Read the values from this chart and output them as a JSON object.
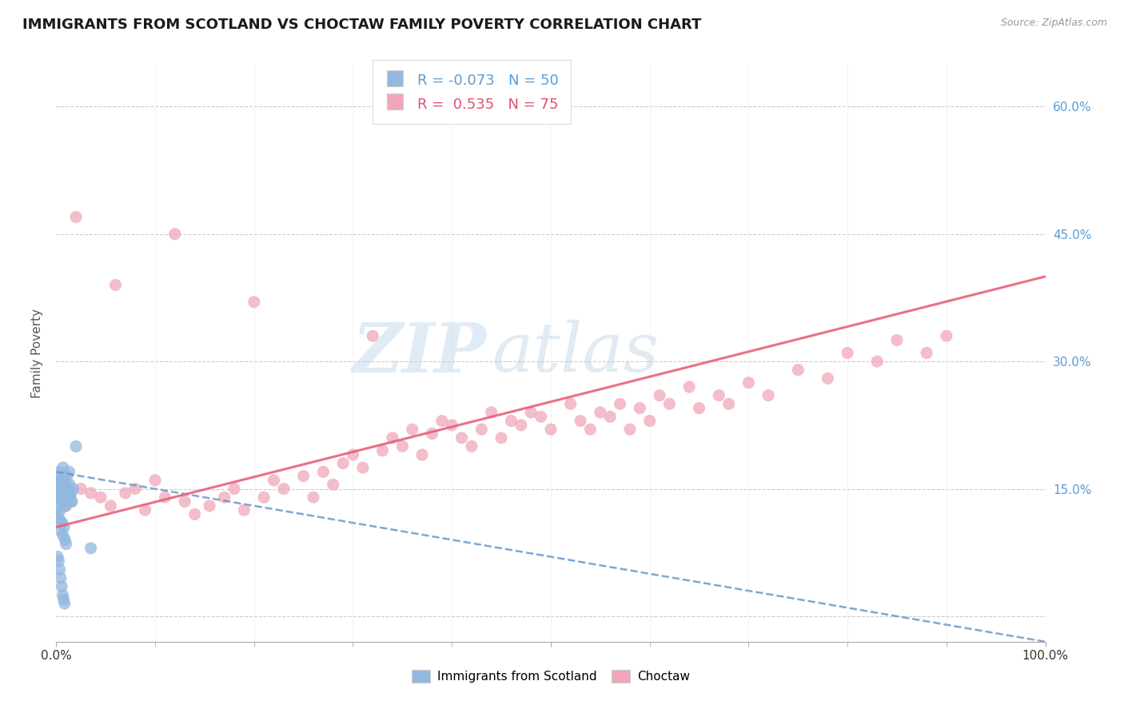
{
  "title": "IMMIGRANTS FROM SCOTLAND VS CHOCTAW FAMILY POVERTY CORRELATION CHART",
  "source_text": "Source: ZipAtlas.com",
  "ylabel": "Family Poverty",
  "xlim": [
    0,
    100
  ],
  "ylim": [
    -3,
    65
  ],
  "y_ticks_right": [
    0,
    15,
    30,
    45,
    60
  ],
  "y_tick_labels_right": [
    "",
    "15.0%",
    "30.0%",
    "45.0%",
    "60.0%"
  ],
  "background_color": "#ffffff",
  "grid_color": "#cccccc",
  "watermark_text1": "ZIP",
  "watermark_text2": "atlas",
  "blue_color": "#92b8e0",
  "blue_line_color": "#6699cc",
  "pink_color": "#f0a8b8",
  "pink_line_color": "#e8607a",
  "blue_scatter_x": [
    0.1,
    0.15,
    0.2,
    0.25,
    0.3,
    0.35,
    0.4,
    0.45,
    0.5,
    0.55,
    0.6,
    0.65,
    0.7,
    0.75,
    0.8,
    0.85,
    0.9,
    0.95,
    1.0,
    1.05,
    1.1,
    1.15,
    1.2,
    1.25,
    1.3,
    1.35,
    1.4,
    1.5,
    1.6,
    1.7,
    0.1,
    0.2,
    0.3,
    0.4,
    0.5,
    0.6,
    0.7,
    0.8,
    0.9,
    1.0,
    0.15,
    0.25,
    0.35,
    0.45,
    0.55,
    0.65,
    0.75,
    0.85,
    3.5,
    2.0
  ],
  "blue_scatter_y": [
    14.0,
    15.5,
    16.0,
    14.5,
    17.0,
    15.0,
    16.5,
    14.0,
    15.0,
    13.5,
    16.0,
    15.5,
    17.5,
    14.0,
    16.0,
    15.0,
    14.5,
    13.0,
    15.5,
    14.0,
    16.5,
    15.0,
    14.0,
    13.5,
    17.0,
    15.5,
    14.0,
    14.5,
    13.5,
    15.0,
    12.0,
    13.0,
    11.5,
    12.5,
    10.0,
    11.0,
    9.5,
    10.5,
    9.0,
    8.5,
    7.0,
    6.5,
    5.5,
    4.5,
    3.5,
    2.5,
    2.0,
    1.5,
    8.0,
    20.0
  ],
  "pink_scatter_x": [
    0.5,
    1.0,
    1.5,
    2.5,
    3.5,
    4.5,
    5.5,
    7.0,
    8.0,
    9.0,
    10.0,
    11.0,
    13.0,
    14.0,
    15.5,
    17.0,
    18.0,
    19.0,
    21.0,
    22.0,
    23.0,
    25.0,
    26.0,
    27.0,
    28.0,
    29.0,
    30.0,
    31.0,
    33.0,
    34.0,
    35.0,
    36.0,
    37.0,
    38.0,
    39.0,
    40.0,
    41.0,
    42.0,
    43.0,
    44.0,
    45.0,
    46.0,
    47.0,
    48.0,
    49.0,
    50.0,
    52.0,
    53.0,
    54.0,
    55.0,
    56.0,
    57.0,
    58.0,
    59.0,
    60.0,
    61.0,
    62.0,
    64.0,
    65.0,
    67.0,
    68.0,
    70.0,
    72.0,
    75.0,
    78.0,
    80.0,
    83.0,
    85.0,
    88.0,
    90.0,
    2.0,
    6.0,
    12.0,
    20.0,
    32.0
  ],
  "pink_scatter_y": [
    11.0,
    13.0,
    13.5,
    15.0,
    14.5,
    14.0,
    13.0,
    14.5,
    15.0,
    12.5,
    16.0,
    14.0,
    13.5,
    12.0,
    13.0,
    14.0,
    15.0,
    12.5,
    14.0,
    16.0,
    15.0,
    16.5,
    14.0,
    17.0,
    15.5,
    18.0,
    19.0,
    17.5,
    19.5,
    21.0,
    20.0,
    22.0,
    19.0,
    21.5,
    23.0,
    22.5,
    21.0,
    20.0,
    22.0,
    24.0,
    21.0,
    23.0,
    22.5,
    24.0,
    23.5,
    22.0,
    25.0,
    23.0,
    22.0,
    24.0,
    23.5,
    25.0,
    22.0,
    24.5,
    23.0,
    26.0,
    25.0,
    27.0,
    24.5,
    26.0,
    25.0,
    27.5,
    26.0,
    29.0,
    28.0,
    31.0,
    30.0,
    32.5,
    31.0,
    33.0,
    47.0,
    39.0,
    45.0,
    37.0,
    33.0
  ],
  "blue_trend_x": [
    0,
    100
  ],
  "blue_trend_y": [
    17.0,
    -3.0
  ],
  "pink_trend_x": [
    0,
    100
  ],
  "pink_trend_y": [
    10.5,
    40.0
  ]
}
